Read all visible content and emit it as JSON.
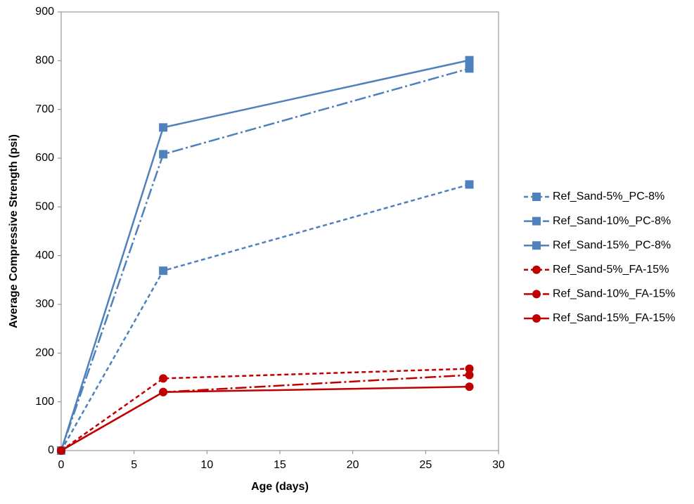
{
  "chart_data": {
    "type": "line",
    "x_label": "Age (days)",
    "y_label": "Average Compressive Strength (psi)",
    "xlim": [
      0,
      30
    ],
    "xticks": [
      0,
      5,
      10,
      15,
      20,
      25,
      30
    ],
    "ylim": [
      0,
      900
    ],
    "yticks": [
      0,
      100,
      200,
      300,
      400,
      500,
      600,
      700,
      800,
      900
    ],
    "grid": false,
    "legend_position": "right",
    "x": [
      0,
      7,
      28
    ],
    "series": [
      {
        "name": "Ref_Sand-5%_PC-8%",
        "color": "#4f81bd",
        "dash": "dashed",
        "marker": "square",
        "values": [
          0,
          369,
          546
        ]
      },
      {
        "name": "Ref_Sand-10%_PC-8%",
        "color": "#4f81bd",
        "dash": "dashdot",
        "marker": "square",
        "values": [
          0,
          608,
          784
        ]
      },
      {
        "name": "Ref_Sand-15%_PC-8%",
        "color": "#4f81bd",
        "dash": "solid",
        "marker": "square",
        "values": [
          0,
          663,
          801
        ]
      },
      {
        "name": "Ref_Sand-5%_FA-15%",
        "color": "#c00000",
        "dash": "dashed",
        "marker": "circle",
        "values": [
          0,
          148,
          168
        ]
      },
      {
        "name": "Ref_Sand-10%_FA-15%",
        "color": "#c00000",
        "dash": "dashdot",
        "marker": "circle",
        "values": [
          0,
          120,
          155
        ]
      },
      {
        "name": "Ref_Sand-15%_FA-15%",
        "color": "#c00000",
        "dash": "solid",
        "marker": "circle",
        "values": [
          0,
          120,
          131
        ]
      }
    ]
  }
}
